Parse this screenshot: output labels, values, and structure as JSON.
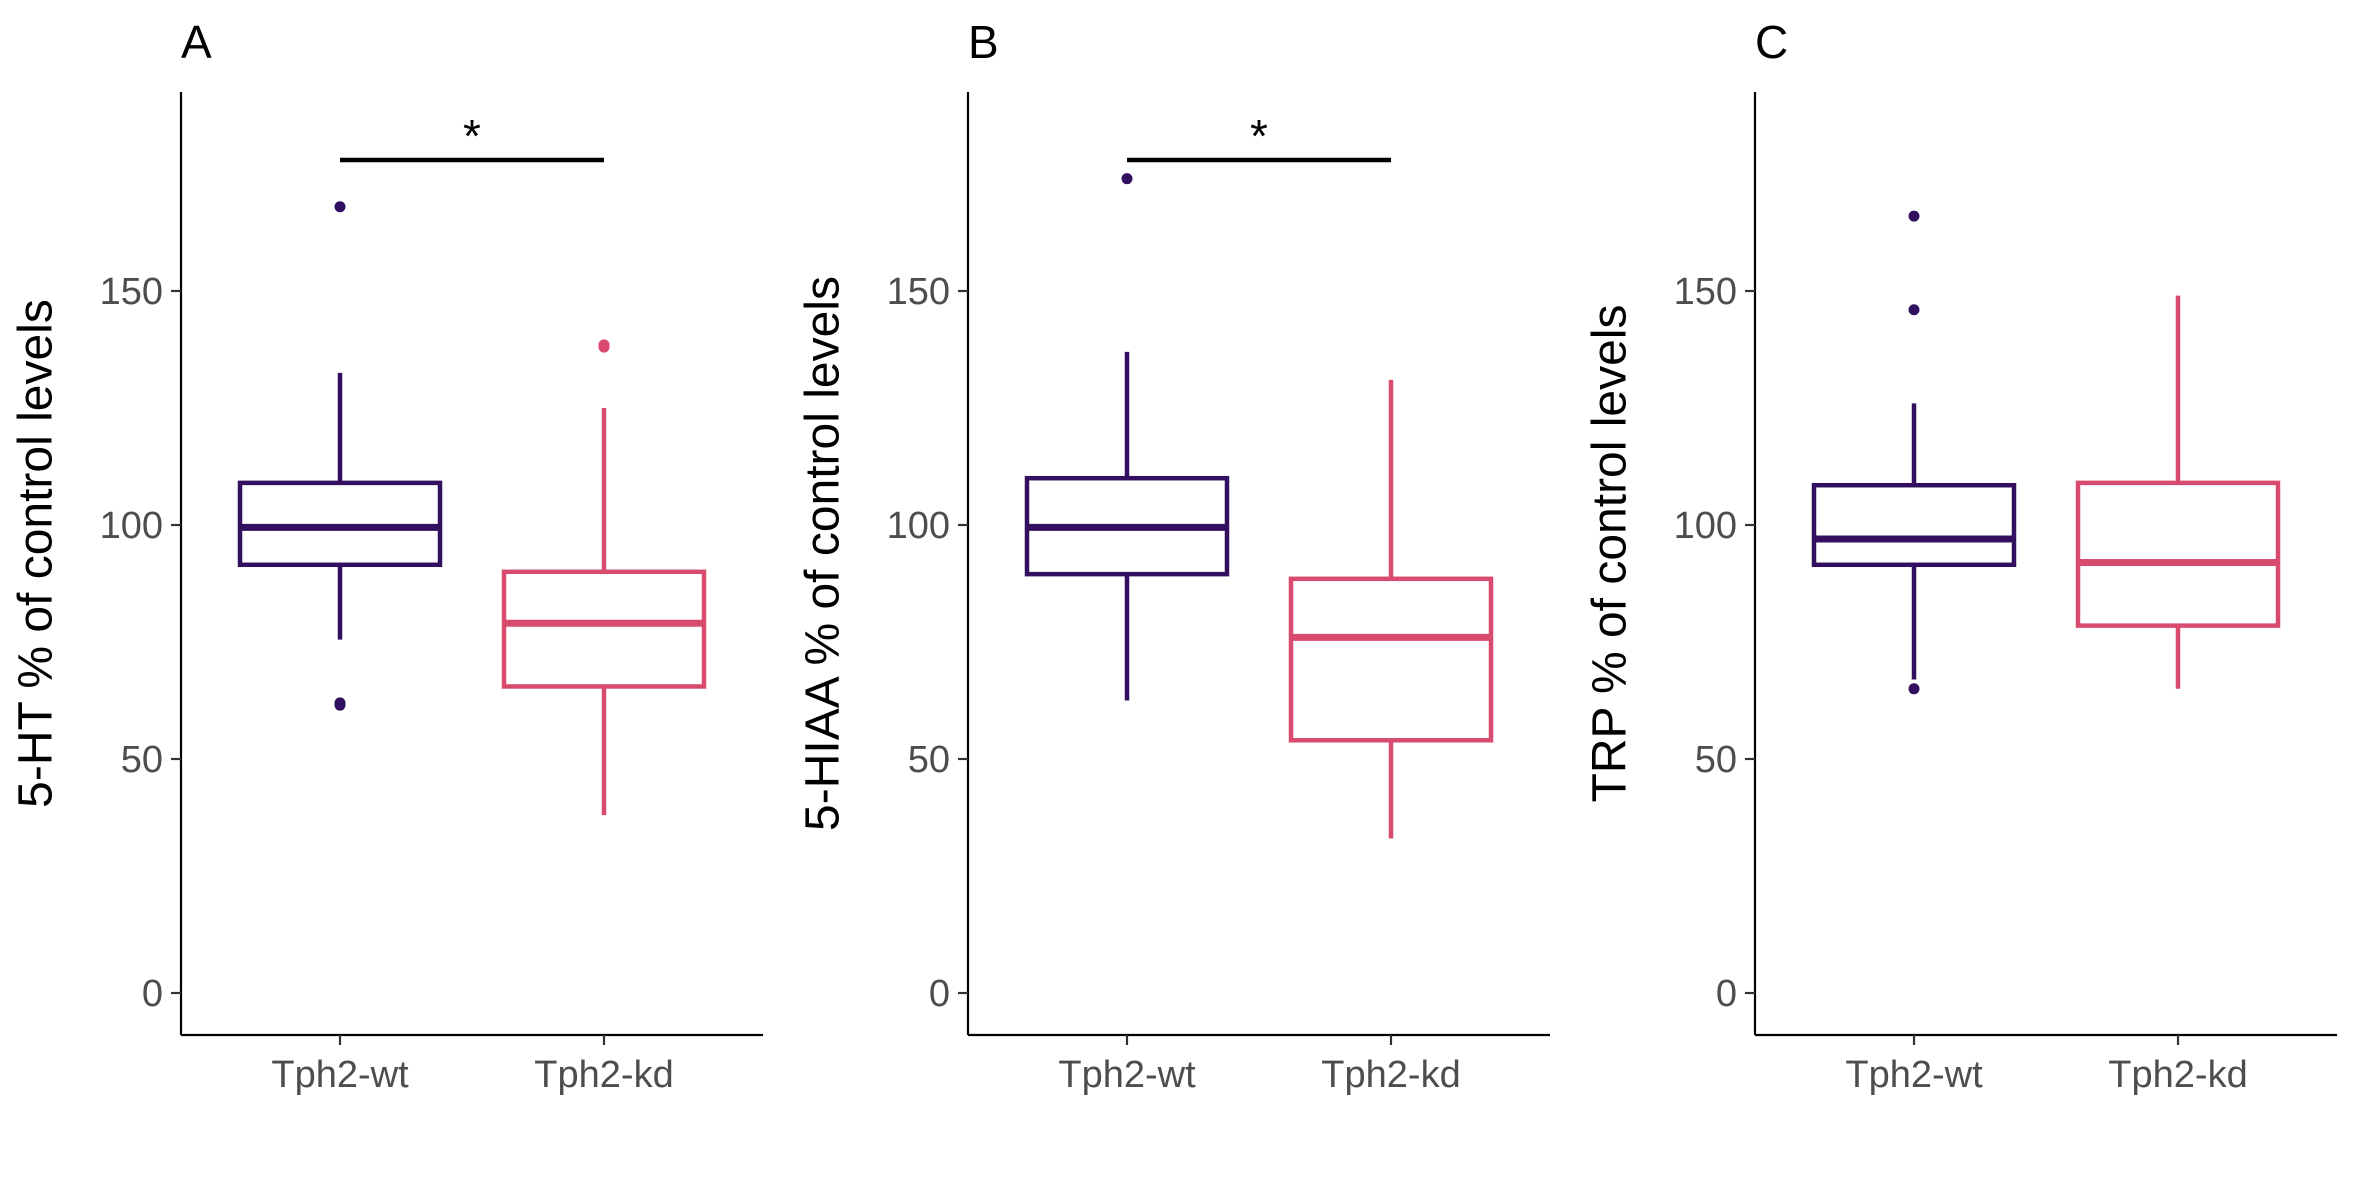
{
  "chart_data": [
    {
      "type": "box",
      "panel": "A",
      "ylabel": "5-HT % of control levels",
      "ylim": [
        0,
        190
      ],
      "yticks": [
        0,
        50,
        100,
        150
      ],
      "categories": [
        "Tph2-wt",
        "Tph2-kd"
      ],
      "colors": [
        "#32105f",
        "#d94a6f"
      ],
      "boxes": [
        {
          "category": "Tph2-wt",
          "whisker_low": 75.5,
          "q1": 91.5,
          "median": 99.5,
          "q3": 109,
          "whisker_high": 132.5,
          "outliers": [
            168,
            62,
            61.5
          ]
        },
        {
          "category": "Tph2-kd",
          "whisker_low": 38,
          "q1": 65.5,
          "median": 79,
          "q3": 90,
          "whisker_high": 125,
          "outliers": [
            138.5,
            138
          ]
        }
      ],
      "significance": [
        {
          "between": [
            "Tph2-wt",
            "Tph2-kd"
          ],
          "y": 178,
          "label": "*"
        }
      ]
    },
    {
      "type": "box",
      "panel": "B",
      "ylabel": "5-HIAA % of control levels",
      "ylim": [
        0,
        190
      ],
      "yticks": [
        0,
        50,
        100,
        150
      ],
      "categories": [
        "Tph2-wt",
        "Tph2-kd"
      ],
      "colors": [
        "#32105f",
        "#d94a6f"
      ],
      "boxes": [
        {
          "category": "Tph2-wt",
          "whisker_low": 62.5,
          "q1": 89.5,
          "median": 99.5,
          "q3": 110,
          "whisker_high": 137,
          "outliers": [
            174
          ]
        },
        {
          "category": "Tph2-kd",
          "whisker_low": 33,
          "q1": 54,
          "median": 76,
          "q3": 88.5,
          "whisker_high": 131,
          "outliers": []
        }
      ],
      "significance": [
        {
          "between": [
            "Tph2-wt",
            "Tph2-kd"
          ],
          "y": 178,
          "label": "*"
        }
      ]
    },
    {
      "type": "box",
      "panel": "C",
      "ylabel": "TRP % of control levels",
      "ylim": [
        0,
        190
      ],
      "yticks": [
        0,
        50,
        100,
        150
      ],
      "categories": [
        "Tph2-wt",
        "Tph2-kd"
      ],
      "colors": [
        "#32105f",
        "#d94a6f"
      ],
      "boxes": [
        {
          "category": "Tph2-wt",
          "whisker_low": 67,
          "q1": 91.5,
          "median": 97,
          "q3": 108.5,
          "whisker_high": 126,
          "outliers": [
            166,
            146,
            65
          ]
        },
        {
          "category": "Tph2-kd",
          "whisker_low": 65,
          "q1": 78.5,
          "median": 92,
          "q3": 109,
          "whisker_high": 149,
          "outliers": []
        }
      ],
      "significance": []
    }
  ]
}
